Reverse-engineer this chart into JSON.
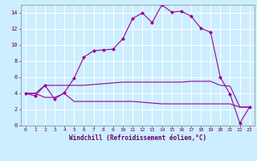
{
  "xlabel": "Windchill (Refroidissement éolien,°C)",
  "ylabel": "",
  "bg_color": "#cceeff",
  "grid_color": "#ffffff",
  "line_color": "#990099",
  "xlim": [
    -0.5,
    23.5
  ],
  "ylim": [
    0,
    15
  ],
  "xticks": [
    0,
    1,
    2,
    3,
    4,
    5,
    6,
    7,
    8,
    9,
    10,
    11,
    12,
    13,
    14,
    15,
    16,
    17,
    18,
    19,
    20,
    21,
    22,
    23
  ],
  "yticks": [
    0,
    2,
    4,
    6,
    8,
    10,
    12,
    14
  ],
  "curve1": [
    4.0,
    3.7,
    5.0,
    3.3,
    4.1,
    5.9,
    8.5,
    9.3,
    9.4,
    9.5,
    10.8,
    13.3,
    14.0,
    12.8,
    15.0,
    14.1,
    14.2,
    13.6,
    12.1,
    11.6,
    6.0,
    3.9,
    0.3,
    2.3
  ],
  "curve2": [
    4.0,
    4.0,
    5.0,
    5.0,
    5.0,
    5.0,
    5.0,
    5.1,
    5.2,
    5.3,
    5.4,
    5.4,
    5.4,
    5.4,
    5.4,
    5.4,
    5.4,
    5.5,
    5.5,
    5.5,
    5.0,
    4.9,
    2.3,
    2.3
  ],
  "curve3": [
    4.0,
    4.0,
    3.5,
    3.5,
    4.0,
    3.0,
    3.0,
    3.0,
    3.0,
    3.0,
    3.0,
    3.0,
    2.9,
    2.8,
    2.7,
    2.7,
    2.7,
    2.7,
    2.7,
    2.7,
    2.7,
    2.7,
    2.3,
    2.3
  ]
}
